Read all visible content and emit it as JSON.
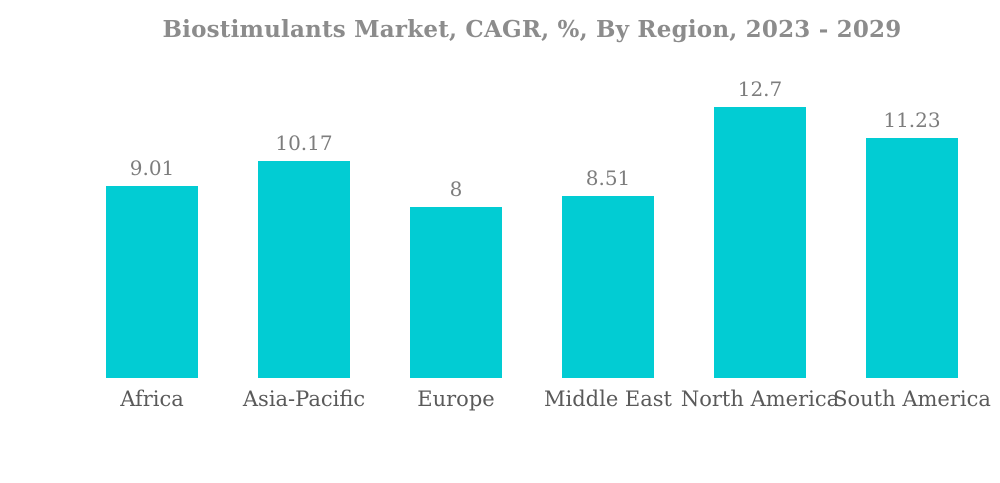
{
  "chart_data": {
    "type": "bar",
    "title": "Biostimulants Market, CAGR, %, By Region, 2023 - 2029",
    "categories": [
      "Africa",
      "Asia-Pacific",
      "Europe",
      "Middle East",
      "North America",
      "South America"
    ],
    "values": [
      9.01,
      10.17,
      8,
      8.51,
      12.7,
      11.23
    ],
    "value_labels": [
      "9.01",
      "10.17",
      "8",
      "8.51",
      "12.7",
      "11.23"
    ],
    "xlabel": "",
    "ylabel": "",
    "ylim": [
      0,
      12.7
    ],
    "grid": false,
    "legend": "none",
    "axis_lines": false,
    "bar_color": "#02CCD3",
    "title_color": "#8C8C8C",
    "value_label_color": "#7D7D7D",
    "category_label_color": "#5A5A5A",
    "background_color": "#FFFFFF"
  }
}
